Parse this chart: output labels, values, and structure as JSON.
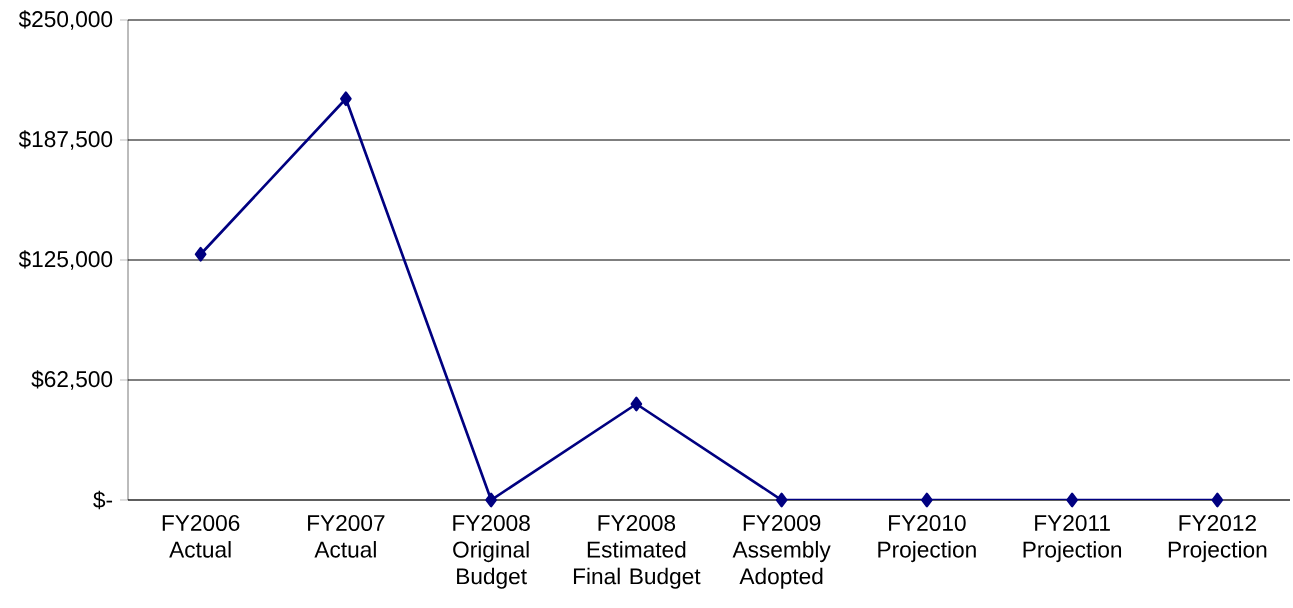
{
  "chart_data": {
    "type": "line",
    "categories": [
      "FY2006 Actual",
      "FY2007 Actual",
      "FY2008 Original Budget",
      "FY2008 Estimated Final Budget",
      "FY2009 Assembly Adopted",
      "FY2010 Projection",
      "FY2011 Projection",
      "FY2012 Projection"
    ],
    "series": [
      {
        "color": "#000080",
        "values": [
          128000,
          209000,
          0,
          50000,
          0,
          0,
          0,
          0
        ]
      }
    ],
    "ylim": [
      0,
      250000
    ],
    "yticks": [
      {
        "value": 0,
        "label": "$-"
      },
      {
        "value": 62500,
        "label": "$62,500"
      },
      {
        "value": 125000,
        "label": "$125,000"
      },
      {
        "value": 187500,
        "label": "$187,500"
      },
      {
        "value": 250000,
        "label": "$250,000"
      }
    ],
    "grid": "y",
    "marker": "diamond",
    "line_style": "solid"
  }
}
